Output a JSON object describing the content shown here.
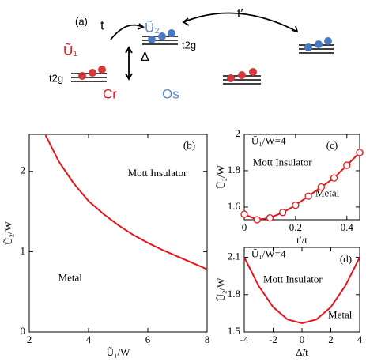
{
  "diagram": {
    "labels": [
      "(a)",
      "t",
      "t′",
      "Ũ₂",
      "t2g",
      "Ũ₁",
      "Δ",
      "t2g",
      "Cr",
      "Os"
    ]
  },
  "chart_data": [
    {
      "type": "line",
      "x": [
        2.55,
        3,
        3.5,
        4,
        4.5,
        5,
        5.5,
        6,
        6.5,
        7,
        7.5,
        8
      ],
      "series": [
        {
          "color": "#e8141c",
          "values": [
            2.45,
            2.12,
            1.85,
            1.63,
            1.47,
            1.33,
            1.21,
            1.11,
            1.02,
            0.94,
            0.86,
            0.78
          ]
        }
      ],
      "xlim": [
        2,
        8
      ],
      "xticks": [
        2,
        4,
        6,
        8
      ],
      "ylim": [
        0,
        2.46
      ],
      "yticks": [
        0,
        1,
        2
      ],
      "xlabel": "Ũ₁/W",
      "ylabel": "Ũ₂/W",
      "annotations": [
        "(b)",
        "Mott Insulator",
        "Metal"
      ]
    },
    {
      "type": "line",
      "marker": "circle",
      "x": [
        0,
        0.05,
        0.1,
        0.15,
        0.2,
        0.25,
        0.3,
        0.35,
        0.4,
        0.45
      ],
      "series": [
        {
          "color": "#e8141c",
          "values": [
            1.56,
            1.53,
            1.54,
            1.57,
            1.61,
            1.66,
            1.71,
            1.76,
            1.83,
            1.9
          ]
        }
      ],
      "xlim": [
        0,
        0.45
      ],
      "xticks": [
        0,
        0.2,
        0.4
      ],
      "ylim": [
        1.53,
        2.0
      ],
      "yticks": [
        1.6,
        1.8,
        2
      ],
      "xlabel": "t′/t",
      "ylabel": "Ũ₂/W",
      "annotations": [
        "Ũ₁/W=4",
        "(c)",
        "Mott Insulator",
        "Metal"
      ]
    },
    {
      "type": "line",
      "x": [
        -4,
        -3,
        -2,
        -1,
        0,
        1,
        2,
        3,
        4
      ],
      "series": [
        {
          "color": "#e8141c",
          "values": [
            2.1,
            1.87,
            1.7,
            1.6,
            1.57,
            1.6,
            1.7,
            1.87,
            2.1
          ]
        }
      ],
      "xlim": [
        -4,
        4
      ],
      "xticks": [
        -4,
        -2,
        0,
        2,
        4
      ],
      "ylim": [
        1.5,
        2.18
      ],
      "yticks": [
        1.5,
        1.8,
        2.1
      ],
      "xlabel": "Δ̃/t",
      "ylabel": "Ũ₂/W",
      "annotations": [
        "Ũ₁/W=4",
        "(d)",
        "Mott Insulator",
        "Metal"
      ]
    }
  ]
}
